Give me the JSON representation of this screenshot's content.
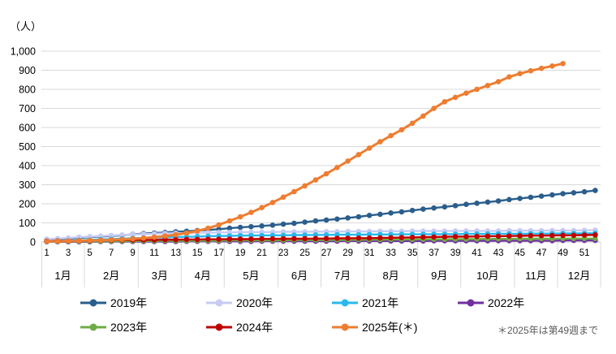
{
  "chart_data": {
    "type": "line",
    "title": "",
    "unit_label": "（人）",
    "xlabel": "",
    "ylabel": "人",
    "ylim": [
      0,
      1000
    ],
    "ytick_step": 100,
    "y_tick_labels": [
      "0",
      "100",
      "200",
      "300",
      "400",
      "500",
      "600",
      "700",
      "800",
      "900",
      "1,000"
    ],
    "week_tick_labels": [
      "1",
      "3",
      "5",
      "7",
      "9",
      "11",
      "13",
      "15",
      "17",
      "19",
      "21",
      "23",
      "25",
      "27",
      "29",
      "31",
      "33",
      "35",
      "37",
      "39",
      "41",
      "43",
      "45",
      "47",
      "49",
      "51"
    ],
    "months": [
      {
        "label": "1月",
        "weeks": 4
      },
      {
        "label": "2月",
        "weeks": 5
      },
      {
        "label": "3月",
        "weeks": 4
      },
      {
        "label": "4月",
        "weeks": 4
      },
      {
        "label": "5月",
        "weeks": 5
      },
      {
        "label": "6月",
        "weeks": 4
      },
      {
        "label": "7月",
        "weeks": 4
      },
      {
        "label": "8月",
        "weeks": 5
      },
      {
        "label": "9月",
        "weeks": 4
      },
      {
        "label": "10月",
        "weeks": 5
      },
      {
        "label": "11月",
        "weeks": 4
      },
      {
        "label": "12月",
        "weeks": 4
      }
    ],
    "grid_on": true,
    "legend_position": "bottom",
    "colors": {
      "grid": "#d9d9d9",
      "axis": "#bfbfbf",
      "tick_text": "#000000",
      "footnote_text": "#595959"
    },
    "series": [
      {
        "name": "2019年",
        "color": "#2a5e8c",
        "line_width": 2.4,
        "values": [
          12,
          15,
          18,
          21,
          25,
          28,
          31,
          35,
          40,
          44,
          47,
          50,
          53,
          56,
          60,
          63,
          67,
          72,
          76,
          80,
          84,
          88,
          93,
          98,
          104,
          110,
          115,
          120,
          126,
          132,
          139,
          145,
          152,
          158,
          165,
          172,
          178,
          184,
          190,
          197,
          203,
          209,
          215,
          222,
          228,
          234,
          240,
          247,
          253,
          258,
          263,
          270
        ]
      },
      {
        "name": "2020年",
        "color": "#c8cbf2",
        "line_width": 2.4,
        "values": [
          15,
          18,
          21,
          25,
          28,
          31,
          34,
          37,
          39,
          41,
          43,
          45,
          46,
          47,
          48,
          49,
          50,
          50,
          51,
          51,
          52,
          52,
          53,
          53,
          53,
          54,
          54,
          54,
          55,
          55,
          55,
          56,
          56,
          56,
          57,
          57,
          57,
          57,
          58,
          58,
          58,
          58,
          58,
          59,
          59,
          59,
          59,
          60,
          60,
          60,
          61,
          62
        ]
      },
      {
        "name": "2021年",
        "color": "#29b9ec",
        "line_width": 2.4,
        "values": [
          4,
          5,
          7,
          9,
          11,
          13,
          15,
          17,
          19,
          21,
          23,
          24,
          26,
          27,
          28,
          30,
          31,
          32,
          33,
          34,
          34,
          35,
          35,
          36,
          36,
          37,
          37,
          38,
          38,
          38,
          39,
          39,
          39,
          40,
          40,
          40,
          41,
          41,
          41,
          42,
          42,
          42,
          43,
          43,
          43,
          44,
          44,
          44,
          45,
          45,
          45,
          46
        ]
      },
      {
        "name": "2022年",
        "color": "#7030a0",
        "line_width": 2.4,
        "values": [
          1,
          1,
          1,
          1,
          1,
          2,
          2,
          2,
          2,
          2,
          2,
          2,
          2,
          3,
          3,
          3,
          3,
          3,
          3,
          3,
          4,
          4,
          4,
          4,
          4,
          4,
          4,
          4,
          5,
          5,
          5,
          5,
          5,
          5,
          5,
          5,
          6,
          6,
          6,
          6,
          6,
          6,
          7,
          7,
          7,
          7,
          7,
          7,
          8,
          8,
          8,
          8
        ]
      },
      {
        "name": "2023年",
        "color": "#6fac46",
        "line_width": 2.4,
        "values": [
          2,
          2,
          3,
          3,
          3,
          4,
          4,
          4,
          5,
          5,
          5,
          6,
          6,
          6,
          7,
          7,
          7,
          8,
          8,
          8,
          9,
          9,
          9,
          10,
          10,
          10,
          11,
          11,
          11,
          12,
          12,
          12,
          13,
          13,
          13,
          14,
          14,
          14,
          15,
          15,
          15,
          16,
          16,
          16,
          17,
          17,
          17,
          17,
          18,
          18,
          18,
          18
        ]
      },
      {
        "name": "2024年",
        "color": "#c00000",
        "line_width": 2.4,
        "values": [
          4,
          5,
          5,
          6,
          7,
          8,
          9,
          10,
          10,
          11,
          11,
          12,
          12,
          13,
          13,
          14,
          14,
          15,
          15,
          15,
          16,
          16,
          17,
          17,
          17,
          18,
          18,
          19,
          19,
          20,
          20,
          21,
          22,
          23,
          24,
          25,
          26,
          27,
          28,
          28,
          29,
          30,
          30,
          31,
          32,
          33,
          33,
          34,
          35,
          35,
          36,
          37
        ]
      },
      {
        "name": "2025年(＊)",
        "color": "#ee7d31",
        "line_width": 3,
        "values": [
          3,
          4,
          5,
          6,
          8,
          9,
          11,
          13,
          16,
          20,
          25,
          31,
          38,
          47,
          58,
          72,
          90,
          110,
          132,
          155,
          180,
          207,
          235,
          264,
          294,
          325,
          357,
          390,
          424,
          458,
          492,
          525,
          557,
          588,
          622,
          660,
          700,
          735,
          758,
          780,
          800,
          820,
          840,
          865,
          882,
          897,
          910,
          922,
          935
        ]
      }
    ],
    "footnote": "＊2025年は第49週まで"
  },
  "legend": {
    "rows": [
      [
        "2019年",
        "2020年",
        "2021年",
        "2022年"
      ],
      [
        "2023年",
        "2024年",
        "2025年(＊)"
      ]
    ]
  }
}
